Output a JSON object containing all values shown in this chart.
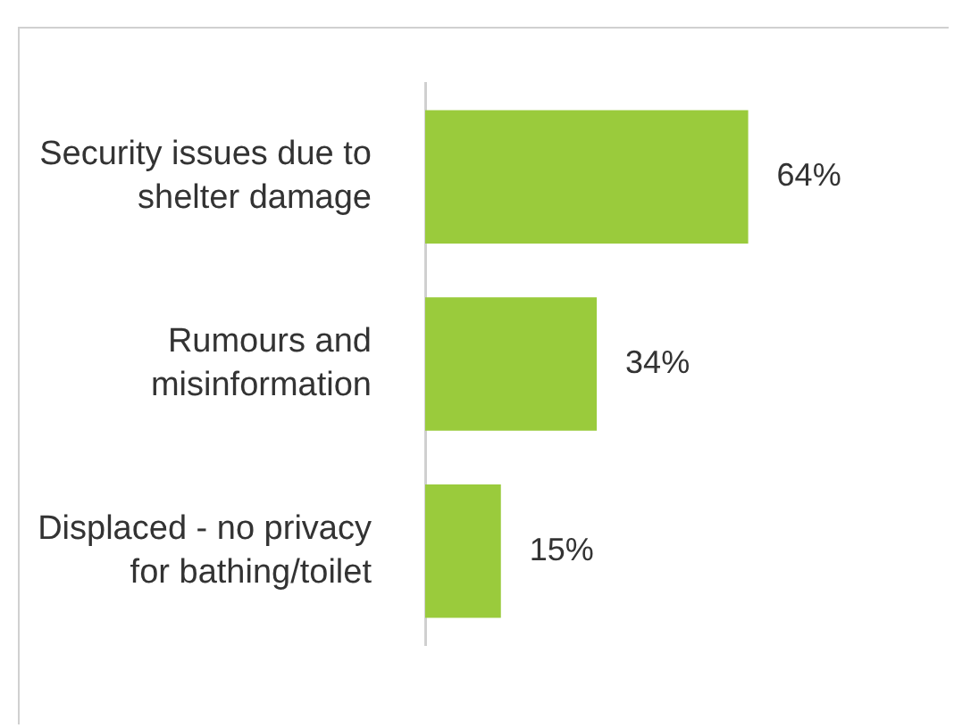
{
  "chart_data": {
    "type": "bar",
    "orientation": "horizontal",
    "categories": [
      "Security issues due to shelter damage",
      "Rumours and misinformation",
      "Displaced - no privacy for bathing/toilet"
    ],
    "values": [
      64,
      34,
      15
    ],
    "color": "#9acb3c",
    "value_labels": [
      "64%",
      "34%",
      "15%"
    ]
  }
}
